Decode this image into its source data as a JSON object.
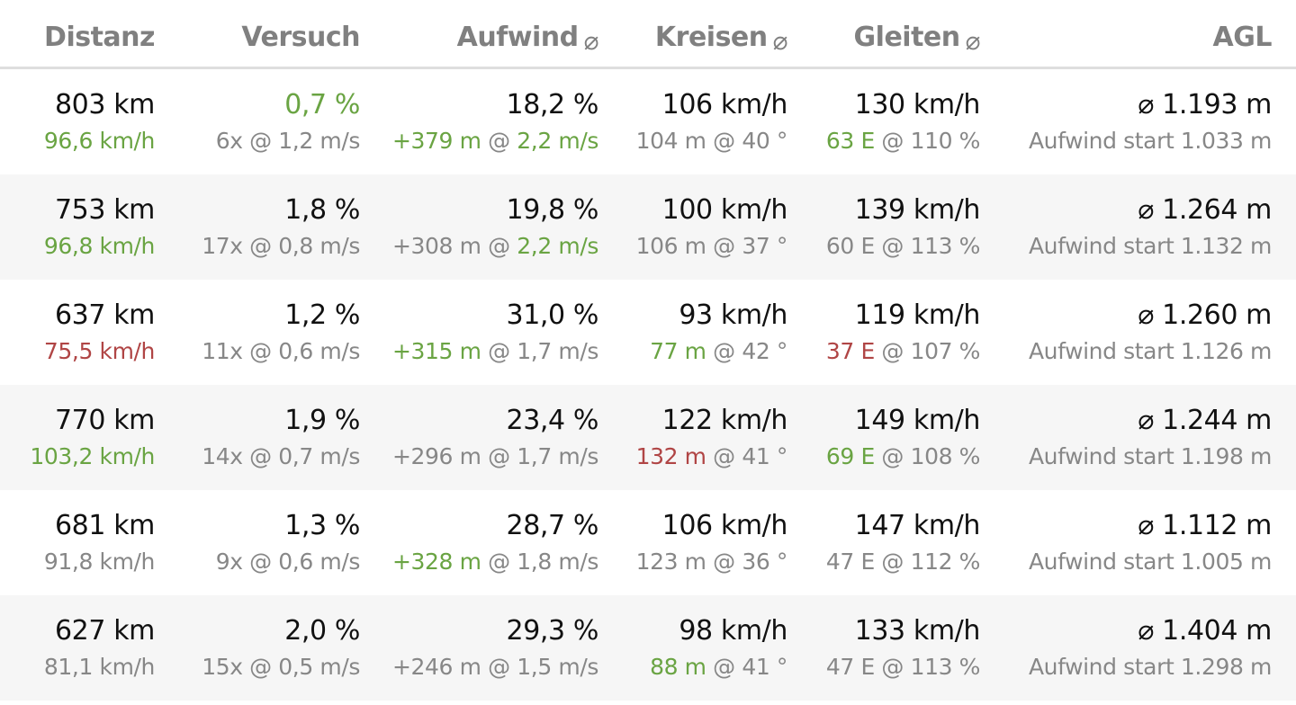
{
  "colors": {
    "positive": "#6aa443",
    "negative": "#b04545",
    "muted": "#878787",
    "header": "#808080",
    "row_shade": "#f6f6f6"
  },
  "header": {
    "distanz": "Distanz",
    "versuch": "Versuch",
    "aufwind": "Aufwind",
    "kreisen": "Kreisen",
    "gleiten": "Gleiten",
    "agl": "AGL",
    "avg_symbol": "⌀"
  },
  "rows": [
    {
      "distanz": {
        "main": "803 km",
        "speed": "96,6 km/h",
        "speed_tone": "green"
      },
      "versuch": {
        "main": "0,7 %",
        "main_tone": "green",
        "sub": "6x @ 1,2 m/s"
      },
      "aufwind": {
        "main": "18,2 %",
        "gain": "+379 m",
        "gain_tone": "green",
        "sep": " @ ",
        "rate": "2,2 m/s",
        "rate_tone": "green"
      },
      "kreisen": {
        "main": "106 km/h",
        "dist": "104 m",
        "dist_tone": "grey",
        "angle": " @ 40 °"
      },
      "gleiten": {
        "main": "130 km/h",
        "e": "63 E",
        "e_tone": "green",
        "pct": " @ 110 %"
      },
      "agl": {
        "main": "⌀ 1.193 m",
        "start": "Aufwind start 1.033 m"
      }
    },
    {
      "distanz": {
        "main": "753 km",
        "speed": "96,8 km/h",
        "speed_tone": "green"
      },
      "versuch": {
        "main": "1,8 %",
        "main_tone": "dark",
        "sub": "17x @ 0,8 m/s"
      },
      "aufwind": {
        "main": "19,8 %",
        "gain": "+308 m",
        "gain_tone": "grey",
        "sep": " @ ",
        "rate": "2,2 m/s",
        "rate_tone": "green"
      },
      "kreisen": {
        "main": "100 km/h",
        "dist": "106 m",
        "dist_tone": "grey",
        "angle": " @ 37 °"
      },
      "gleiten": {
        "main": "139 km/h",
        "e": "60 E",
        "e_tone": "grey",
        "pct": " @ 113 %"
      },
      "agl": {
        "main": "⌀ 1.264 m",
        "start": "Aufwind start 1.132 m"
      }
    },
    {
      "distanz": {
        "main": "637 km",
        "speed": "75,5 km/h",
        "speed_tone": "red"
      },
      "versuch": {
        "main": "1,2 %",
        "main_tone": "dark",
        "sub": "11x @ 0,6 m/s"
      },
      "aufwind": {
        "main": "31,0 %",
        "gain": "+315 m",
        "gain_tone": "green",
        "sep": " @ ",
        "rate": "1,7 m/s",
        "rate_tone": "grey"
      },
      "kreisen": {
        "main": "93 km/h",
        "dist": "77 m",
        "dist_tone": "green",
        "angle": " @ 42 °"
      },
      "gleiten": {
        "main": "119 km/h",
        "e": "37 E",
        "e_tone": "red",
        "pct": " @ 107 %"
      },
      "agl": {
        "main": "⌀ 1.260 m",
        "start": "Aufwind start 1.126 m"
      }
    },
    {
      "distanz": {
        "main": "770 km",
        "speed": "103,2 km/h",
        "speed_tone": "green"
      },
      "versuch": {
        "main": "1,9 %",
        "main_tone": "dark",
        "sub": "14x @ 0,7 m/s"
      },
      "aufwind": {
        "main": "23,4 %",
        "gain": "+296 m",
        "gain_tone": "grey",
        "sep": " @ ",
        "rate": "1,7 m/s",
        "rate_tone": "grey"
      },
      "kreisen": {
        "main": "122 km/h",
        "dist": "132 m",
        "dist_tone": "red",
        "angle": " @ 41 °"
      },
      "gleiten": {
        "main": "149 km/h",
        "e": "69 E",
        "e_tone": "green",
        "pct": " @ 108 %"
      },
      "agl": {
        "main": "⌀ 1.244 m",
        "start": "Aufwind start 1.198 m"
      }
    },
    {
      "distanz": {
        "main": "681 km",
        "speed": "91,8 km/h",
        "speed_tone": "grey"
      },
      "versuch": {
        "main": "1,3 %",
        "main_tone": "dark",
        "sub": "9x @ 0,6 m/s"
      },
      "aufwind": {
        "main": "28,7 %",
        "gain": "+328 m",
        "gain_tone": "green",
        "sep": " @ ",
        "rate": "1,8 m/s",
        "rate_tone": "grey"
      },
      "kreisen": {
        "main": "106 km/h",
        "dist": "123 m",
        "dist_tone": "grey",
        "angle": " @ 36 °"
      },
      "gleiten": {
        "main": "147 km/h",
        "e": "47 E",
        "e_tone": "grey",
        "pct": " @ 112 %"
      },
      "agl": {
        "main": "⌀ 1.112 m",
        "start": "Aufwind start 1.005 m"
      }
    },
    {
      "distanz": {
        "main": "627 km",
        "speed": "81,1 km/h",
        "speed_tone": "grey"
      },
      "versuch": {
        "main": "2,0 %",
        "main_tone": "dark",
        "sub": "15x @ 0,5 m/s"
      },
      "aufwind": {
        "main": "29,3 %",
        "gain": "+246 m",
        "gain_tone": "grey",
        "sep": " @ ",
        "rate": "1,5 m/s",
        "rate_tone": "grey"
      },
      "kreisen": {
        "main": "98 km/h",
        "dist": "88 m",
        "dist_tone": "green",
        "angle": " @ 41 °"
      },
      "gleiten": {
        "main": "133 km/h",
        "e": "47 E",
        "e_tone": "grey",
        "pct": " @ 113 %"
      },
      "agl": {
        "main": "⌀ 1.404 m",
        "start": "Aufwind start 1.298 m"
      }
    }
  ]
}
